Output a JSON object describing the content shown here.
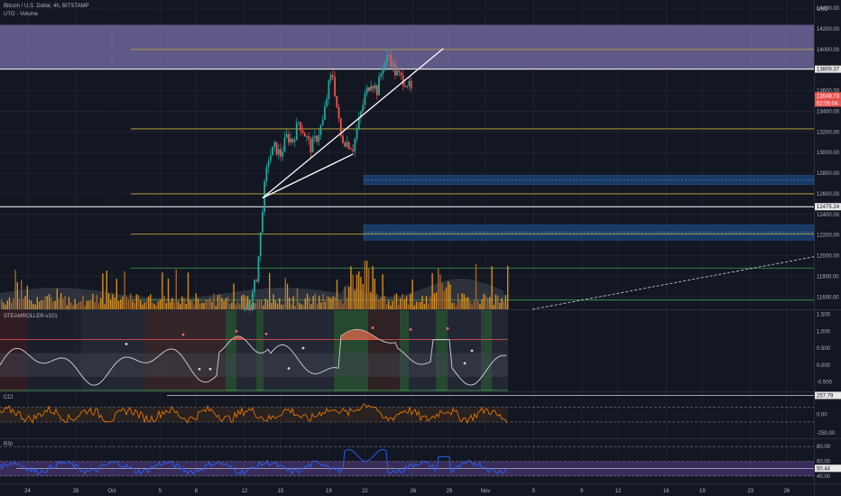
{
  "header": {
    "symbol_line": "Bitcoin / U.S. Dollar, 4h, BITSTAMP",
    "volume_label": "UTG - Volume",
    "currency": "USD"
  },
  "indicators": {
    "steamroller_label": "STEAMROLLER-v101",
    "cci_label": "CCI",
    "rsi_label": "RSI"
  },
  "price_badges": {
    "high_level": "13809.37",
    "last_price": "13549.73",
    "countdown": "02:05:04",
    "low_level": "12475.24"
  },
  "colors": {
    "background": "#131722",
    "up_candle": "#26a69a",
    "down_candle": "#ef5350",
    "volume_up": "#f7a21b",
    "resistance_zone": "#9c8fd9",
    "support_zone": "#1e5fa8",
    "fib_line": "#c9b33a",
    "green_line": "#3fa34d",
    "trendline": "#ffffff",
    "oscillator_line": "#d1d4dc",
    "cci_line": "#f57c00",
    "rsi_line": "#2962ff",
    "rsi_band": "#7e57c2"
  },
  "chart_data": [
    {
      "type": "candlestick",
      "title": "Bitcoin / U.S. Dollar, 4h, BITSTAMP",
      "x_tick_labels": [
        "24",
        "28",
        "Oct",
        "5",
        "8",
        "12",
        "15",
        "19",
        "22",
        "26",
        "29",
        "Nov",
        "5",
        "9",
        "12",
        "16",
        "19",
        "23",
        "26"
      ],
      "y_tick_labels": [
        "14400.00",
        "14200.00",
        "14000.00",
        "13800.00",
        "13600.00",
        "13400.00",
        "13200.00",
        "13000.00",
        "12800.00",
        "12600.00",
        "12400.00",
        "12200.00",
        "12000.00",
        "11800.00",
        "11600.00"
      ],
      "ylim": [
        11480,
        14480
      ],
      "ohlc_note": "approximate path read from image",
      "price_path": [
        [
          20,
          11450
        ],
        [
          20.5,
          11520
        ],
        [
          21,
          11800
        ],
        [
          21.3,
          12150
        ],
        [
          21.5,
          12480
        ],
        [
          21.7,
          12700
        ],
        [
          22,
          12950
        ],
        [
          22.5,
          13050
        ],
        [
          23,
          12980
        ],
        [
          23.5,
          13150
        ],
        [
          24,
          13120
        ],
        [
          24.5,
          13300
        ],
        [
          25,
          13180
        ],
        [
          25.5,
          13050
        ],
        [
          26,
          13150
        ],
        [
          26.5,
          13300
        ],
        [
          27,
          13650
        ],
        [
          27.3,
          13780
        ],
        [
          27.6,
          13500
        ],
        [
          28,
          13150
        ],
        [
          28.5,
          13100
        ],
        [
          29,
          13050
        ],
        [
          29.5,
          13300
        ],
        [
          30,
          13550
        ],
        [
          30.5,
          13700
        ],
        [
          31,
          13600
        ],
        [
          31.5,
          13850
        ],
        [
          32,
          13950
        ],
        [
          32.5,
          13780
        ],
        [
          33,
          13720
        ],
        [
          33.5,
          13680
        ],
        [
          34,
          13549.73
        ]
      ],
      "zones": [
        {
          "name": "resistance",
          "from": 13809.37,
          "to": 14240
        },
        {
          "name": "support-upper",
          "from": 12690,
          "to": 12780
        },
        {
          "name": "support-lower",
          "from": 12150,
          "to": 12300
        }
      ],
      "fib_levels": [
        14000,
        13230,
        12600,
        12210
      ],
      "green_levels": [
        11880,
        11570
      ],
      "white_levels": [
        13809.37,
        12475.24
      ],
      "trendline": [
        [
          21.5,
          12560
        ],
        [
          36.5,
          14010
        ]
      ]
    },
    {
      "type": "oscillator",
      "title": "STEAMROLLER-v101",
      "y_tick_labels": [
        "1.500",
        "1.000",
        "0.500",
        "0.000",
        "-0.500"
      ],
      "ylim": [
        -0.78,
        1.62
      ],
      "levels": [
        0.75,
        -0.75
      ]
    },
    {
      "type": "line",
      "title": "CCI",
      "y_tick_labels": [
        "257.79",
        "0.00",
        "-250.00"
      ],
      "ylim": [
        -320,
        300
      ],
      "levels": [
        257.79,
        100,
        -100
      ]
    },
    {
      "type": "line",
      "title": "RSI",
      "y_tick_labels": [
        "80.00",
        "60.00",
        "50.44",
        "40.00"
      ],
      "ylim": [
        30,
        90
      ],
      "band": [
        40,
        60
      ],
      "levels": [
        70,
        50.44
      ]
    }
  ]
}
